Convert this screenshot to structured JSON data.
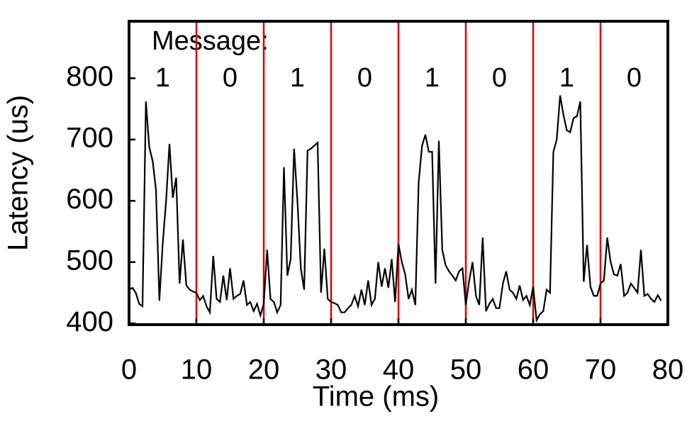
{
  "chart_data": {
    "type": "line",
    "x_label": "Time (ms)",
    "y_label": "Latency (us)",
    "annotation": "Message:",
    "bits": [
      "1",
      "0",
      "1",
      "0",
      "1",
      "0",
      "1",
      "0"
    ],
    "dividers": [
      10,
      20,
      30,
      40,
      50,
      60,
      70
    ],
    "divider_color": "#e00000",
    "xlim": [
      0,
      80
    ],
    "xticks": [
      0,
      10,
      20,
      30,
      40,
      50,
      60,
      70,
      80
    ],
    "ylim": [
      398,
      893
    ],
    "yticks": [
      400,
      500,
      600,
      700,
      800
    ],
    "x": [
      0,
      0.5,
      1,
      1.5,
      2,
      2.5,
      3,
      3.5,
      4,
      4.5,
      5,
      5.5,
      6,
      6.5,
      7,
      7.5,
      8,
      8.5,
      9,
      9.5,
      10,
      10.5,
      11,
      11.5,
      12,
      12.5,
      13,
      13.5,
      14,
      14.5,
      15,
      15.5,
      16,
      16.5,
      17,
      17.5,
      18,
      18.5,
      19,
      19.5,
      20,
      20.5,
      21,
      21.5,
      22,
      22.5,
      23,
      23.5,
      24,
      24.5,
      25,
      25.5,
      26,
      26.5,
      27,
      27.5,
      28,
      28.5,
      29,
      29.5,
      30,
      30.5,
      31,
      31.5,
      32,
      32.5,
      33,
      33.5,
      34,
      34.5,
      35,
      35.5,
      36,
      36.5,
      37,
      37.5,
      38,
      38.5,
      39,
      39.5,
      40,
      40.5,
      41,
      41.5,
      42,
      42.5,
      43,
      43.5,
      44,
      44.5,
      45,
      45.5,
      46,
      46.5,
      47,
      47.5,
      48,
      48.5,
      49,
      49.5,
      50,
      50.5,
      51,
      51.5,
      52,
      52.5,
      53,
      53.5,
      54,
      54.5,
      55,
      55.5,
      56,
      56.5,
      57,
      57.5,
      58,
      58.5,
      59,
      59.5,
      60,
      60.5,
      61,
      61.5,
      62,
      62.5,
      63,
      63.5,
      64,
      64.5,
      65,
      65.5,
      66,
      66.5,
      67,
      67.5,
      68,
      68.5,
      69,
      69.5,
      70,
      70.5,
      71,
      71.5,
      72,
      72.5,
      73,
      73.5,
      74,
      74.5,
      75,
      75.5,
      76,
      76.5,
      77,
      77.5,
      78,
      78.5,
      79
    ],
    "series": [
      {
        "name": "Latency",
        "color": "#000000",
        "values": [
          455,
          458,
          450,
          432,
          428,
          762,
          688,
          665,
          618,
          437,
          530,
          600,
          693,
          605,
          638,
          465,
          537,
          462,
          455,
          452,
          450,
          438,
          445,
          428,
          418,
          510,
          440,
          435,
          478,
          438,
          490,
          440,
          445,
          448,
          470,
          430,
          435,
          420,
          432,
          413,
          432,
          520,
          440,
          435,
          418,
          430,
          655,
          478,
          505,
          685,
          600,
          490,
          455,
          682,
          685,
          690,
          695,
          450,
          522,
          440,
          435,
          433,
          430,
          418,
          418,
          425,
          430,
          445,
          428,
          455,
          430,
          470,
          430,
          440,
          500,
          460,
          490,
          458,
          505,
          435,
          530,
          500,
          480,
          440,
          455,
          430,
          630,
          690,
          708,
          680,
          680,
          465,
          698,
          520,
          495,
          485,
          478,
          470,
          485,
          490,
          430,
          470,
          500,
          445,
          430,
          540,
          420,
          432,
          440,
          425,
          425,
          465,
          485,
          455,
          450,
          440,
          462,
          438,
          445,
          430,
          460,
          405,
          415,
          420,
          455,
          450,
          680,
          700,
          772,
          740,
          715,
          712,
          735,
          738,
          762,
          468,
          528,
          460,
          445,
          445,
          465,
          470,
          540,
          500,
          480,
          478,
          497,
          445,
          450,
          465,
          458,
          450,
          520,
          445,
          448,
          440,
          435,
          446,
          437
        ]
      }
    ]
  }
}
